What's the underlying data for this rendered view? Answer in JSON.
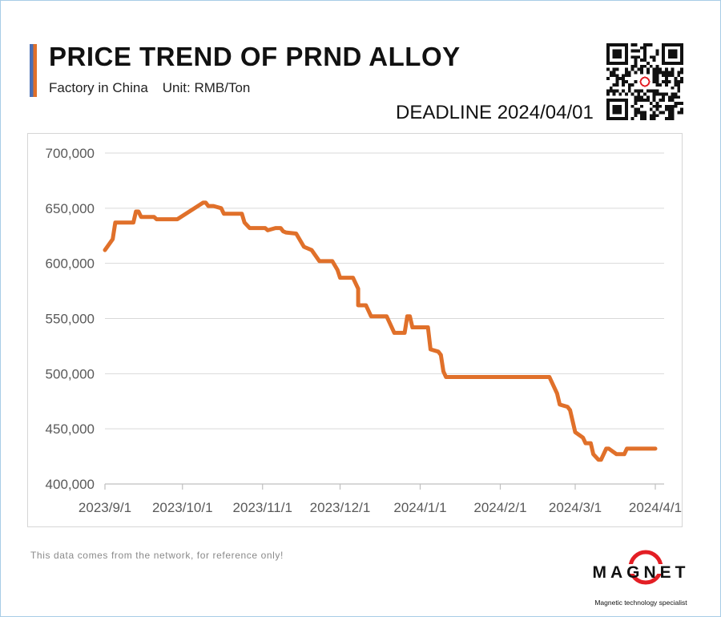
{
  "header": {
    "title": "PRICE TREND OF PRND ALLOY",
    "factory": "Factory in China",
    "unit": "Unit: RMB/Ton",
    "deadline": "DEADLINE 2024/04/01"
  },
  "footer": {
    "note": "This data comes from the network, for reference only!"
  },
  "brand": {
    "name": "MAGNET",
    "tagline": "Magnetic technology specialist",
    "color": "#e31e24"
  },
  "colors": {
    "line": "#e0702a",
    "accent_blue": "#4a6fb5",
    "grid": "#d9d9d9"
  },
  "chart_data": {
    "type": "line",
    "title": "PRICE TREND OF PRND ALLOY",
    "xlabel": "",
    "ylabel": "",
    "ylim": [
      400000,
      700000
    ],
    "yticks": [
      400000,
      450000,
      500000,
      550000,
      600000,
      650000,
      700000
    ],
    "ytick_labels": [
      "400,000",
      "450,000",
      "500,000",
      "550,000",
      "600,000",
      "650,000",
      "700,000"
    ],
    "xlim": [
      "2023-09-01",
      "2024-04-01"
    ],
    "xticks": [
      "2023-09-01",
      "2023-10-01",
      "2023-11-01",
      "2023-12-01",
      "2024-01-01",
      "2024-02-01",
      "2024-03-01",
      "2024-04-01"
    ],
    "xtick_labels": [
      "2023/9/1",
      "2023/10/1",
      "2023/11/1",
      "2023/12/1",
      "2024/1/1",
      "2024/2/1",
      "2024/3/1",
      "2024/4/1"
    ],
    "grid": true,
    "legend": "none",
    "series": [
      {
        "points": [
          [
            "2023-09-01",
            612000
          ],
          [
            "2023-09-04",
            622000
          ],
          [
            "2023-09-05",
            637000
          ],
          [
            "2023-09-12",
            637000
          ],
          [
            "2023-09-13",
            647000
          ],
          [
            "2023-09-14",
            647000
          ],
          [
            "2023-09-15",
            642000
          ],
          [
            "2023-09-20",
            642000
          ],
          [
            "2023-09-21",
            640000
          ],
          [
            "2023-09-29",
            640000
          ],
          [
            "2023-10-09",
            655000
          ],
          [
            "2023-10-10",
            655000
          ],
          [
            "2023-10-11",
            652000
          ],
          [
            "2023-10-13",
            652000
          ],
          [
            "2023-10-16",
            650000
          ],
          [
            "2023-10-17",
            645000
          ],
          [
            "2023-10-24",
            645000
          ],
          [
            "2023-10-25",
            637000
          ],
          [
            "2023-10-27",
            632000
          ],
          [
            "2023-11-02",
            632000
          ],
          [
            "2023-11-03",
            630000
          ],
          [
            "2023-11-06",
            632000
          ],
          [
            "2023-11-08",
            632000
          ],
          [
            "2023-11-09",
            629000
          ],
          [
            "2023-11-10",
            628000
          ],
          [
            "2023-11-14",
            627000
          ],
          [
            "2023-11-17",
            615000
          ],
          [
            "2023-11-20",
            612000
          ],
          [
            "2023-11-23",
            602000
          ],
          [
            "2023-11-28",
            602000
          ],
          [
            "2023-11-30",
            594000
          ],
          [
            "2023-12-01",
            587000
          ],
          [
            "2023-12-06",
            587000
          ],
          [
            "2023-12-08",
            577000
          ],
          [
            "2023-12-08",
            562000
          ],
          [
            "2023-12-11",
            562000
          ],
          [
            "2023-12-13",
            552000
          ],
          [
            "2023-12-19",
            552000
          ],
          [
            "2023-12-22",
            537000
          ],
          [
            "2023-12-26",
            537000
          ],
          [
            "2023-12-27",
            552000
          ],
          [
            "2023-12-28",
            552000
          ],
          [
            "2023-12-29",
            542000
          ],
          [
            "2024-01-04",
            542000
          ],
          [
            "2024-01-05",
            522000
          ],
          [
            "2024-01-08",
            520000
          ],
          [
            "2024-01-09",
            517000
          ],
          [
            "2024-01-10",
            502000
          ],
          [
            "2024-01-11",
            497000
          ],
          [
            "2024-02-20",
            497000
          ],
          [
            "2024-02-23",
            482000
          ],
          [
            "2024-02-24",
            472000
          ],
          [
            "2024-02-27",
            470000
          ],
          [
            "2024-02-28",
            467000
          ],
          [
            "2024-02-29",
            457000
          ],
          [
            "2024-03-01",
            447000
          ],
          [
            "2024-03-04",
            442000
          ],
          [
            "2024-03-05",
            437000
          ],
          [
            "2024-03-07",
            437000
          ],
          [
            "2024-03-08",
            427000
          ],
          [
            "2024-03-10",
            422000
          ],
          [
            "2024-03-11",
            422000
          ],
          [
            "2024-03-13",
            432000
          ],
          [
            "2024-03-14",
            432000
          ],
          [
            "2024-03-17",
            427000
          ],
          [
            "2024-03-20",
            427000
          ],
          [
            "2024-03-21",
            432000
          ],
          [
            "2024-04-01",
            432000
          ]
        ]
      }
    ]
  }
}
